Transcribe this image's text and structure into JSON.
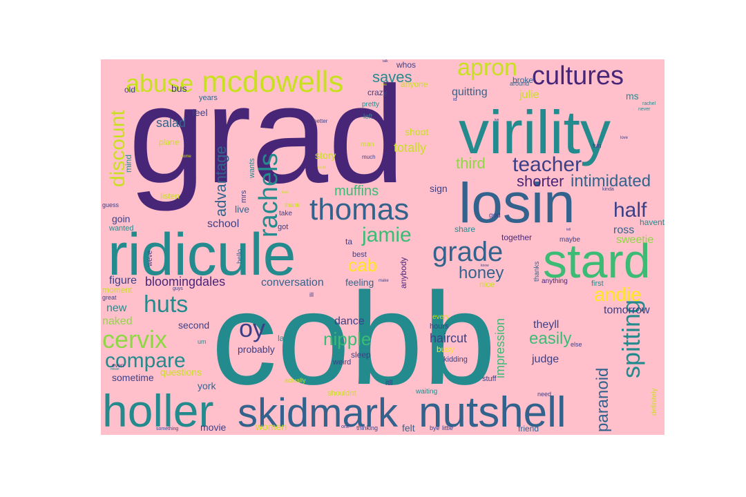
{
  "palette": {
    "purple": "#482677",
    "indigo": "#3b3f86",
    "blue": "#33638d",
    "teal": "#238a8d",
    "teal2": "#2a9d8f",
    "green": "#3cbb75",
    "lime": "#8fd744",
    "yellow": "#c9e020",
    "gold": "#fde725",
    "background": "#ffc0cb"
  },
  "words": [
    {
      "text": "grad",
      "c": "purple"
    },
    {
      "text": "cobb",
      "c": "teal"
    },
    {
      "text": "virility",
      "c": "teal"
    },
    {
      "text": "losin",
      "c": "blue"
    },
    {
      "text": "ridicule",
      "c": "teal"
    },
    {
      "text": "stard",
      "c": "green"
    },
    {
      "text": "nutshell",
      "c": "blue"
    },
    {
      "text": "skidmark",
      "c": "blue"
    },
    {
      "text": "holler",
      "c": "teal"
    },
    {
      "text": "mcdowells",
      "c": "yellow"
    },
    {
      "text": "abuse",
      "c": "yellow"
    },
    {
      "text": "cultures",
      "c": "purple"
    },
    {
      "text": "apron",
      "c": "yellow"
    },
    {
      "text": "thomas",
      "c": "blue"
    },
    {
      "text": "rachels",
      "c": "teal"
    },
    {
      "text": "compare",
      "c": "teal"
    },
    {
      "text": "cervix",
      "c": "lime"
    },
    {
      "text": "huts",
      "c": "teal"
    },
    {
      "text": "grade",
      "c": "blue"
    },
    {
      "text": "jamie",
      "c": "green"
    },
    {
      "text": "oy",
      "c": "indigo"
    },
    {
      "text": "spitting",
      "c": "teal"
    },
    {
      "text": "half",
      "c": "indigo"
    },
    {
      "text": "teacher",
      "c": "indigo"
    },
    {
      "text": "intimidated",
      "c": "blue"
    },
    {
      "text": "discount",
      "c": "yellow"
    },
    {
      "text": "advantage",
      "c": "blue"
    },
    {
      "text": "shorter",
      "c": "purple"
    },
    {
      "text": "muffins",
      "c": "green"
    },
    {
      "text": "saves",
      "c": "teal"
    },
    {
      "text": "honey",
      "c": "blue"
    },
    {
      "text": "cab",
      "c": "gold"
    },
    {
      "text": "andie",
      "c": "gold"
    },
    {
      "text": "nipple",
      "c": "green"
    },
    {
      "text": "easily",
      "c": "green"
    },
    {
      "text": "paranoid",
      "c": "blue"
    },
    {
      "text": "bloomingdales",
      "c": "purple"
    },
    {
      "text": "conversation",
      "c": "blue"
    },
    {
      "text": "third",
      "c": "lime"
    },
    {
      "text": "totally",
      "c": "yellow"
    },
    {
      "text": "quitting",
      "c": "blue"
    },
    {
      "text": "haircut",
      "c": "indigo"
    },
    {
      "text": "impression",
      "c": "green"
    },
    {
      "text": "salad",
      "c": "blue"
    },
    {
      "text": "school",
      "c": "indigo"
    },
    {
      "text": "naked",
      "c": "lime"
    },
    {
      "text": "new",
      "c": "teal"
    },
    {
      "text": "figure",
      "c": "indigo"
    },
    {
      "text": "dance",
      "c": "indigo"
    },
    {
      "text": "probably",
      "c": "indigo"
    },
    {
      "text": "judge",
      "c": "indigo"
    },
    {
      "text": "theyll",
      "c": "indigo"
    },
    {
      "text": "tomorrow",
      "c": "indigo"
    },
    {
      "text": "sweetie",
      "c": "lime"
    },
    {
      "text": "ross",
      "c": "blue"
    },
    {
      "text": "julie",
      "c": "yellow"
    },
    {
      "text": "story",
      "c": "yellow"
    },
    {
      "text": "shoot",
      "c": "yellow"
    },
    {
      "text": "sign",
      "c": "indigo"
    },
    {
      "text": "feeling",
      "c": "blue"
    },
    {
      "text": "second",
      "c": "indigo"
    },
    {
      "text": "questions",
      "c": "yellow"
    },
    {
      "text": "sometime",
      "c": "indigo"
    },
    {
      "text": "york",
      "c": "blue"
    },
    {
      "text": "movie",
      "c": "indigo"
    },
    {
      "text": "women",
      "c": "yellow"
    },
    {
      "text": "felt",
      "c": "blue"
    },
    {
      "text": "friend",
      "c": "blue"
    },
    {
      "text": "whos",
      "c": "indigo"
    },
    {
      "text": "anyone",
      "c": "yellow"
    },
    {
      "text": "crazy",
      "c": "indigo"
    },
    {
      "text": "bus",
      "c": "indigo"
    },
    {
      "text": "old",
      "c": "indigo"
    },
    {
      "text": "feel",
      "c": "indigo"
    },
    {
      "text": "years",
      "c": "blue"
    },
    {
      "text": "plane",
      "c": "yellow"
    },
    {
      "text": "mind",
      "c": "teal"
    },
    {
      "text": "listen",
      "c": "yellow"
    },
    {
      "text": "goin",
      "c": "indigo"
    },
    {
      "text": "wanted",
      "c": "teal"
    },
    {
      "text": "live",
      "c": "blue"
    },
    {
      "text": "mrs",
      "c": "indigo"
    },
    {
      "text": "wants",
      "c": "teal"
    },
    {
      "text": "got",
      "c": "indigo"
    },
    {
      "text": "ta",
      "c": "indigo"
    },
    {
      "text": "take",
      "c": "indigo"
    },
    {
      "text": "thank",
      "c": "yellow"
    },
    {
      "text": "hello",
      "c": "blue"
    },
    {
      "text": "best",
      "c": "indigo"
    },
    {
      "text": "anybody",
      "c": "purple"
    },
    {
      "text": "together",
      "c": "purple"
    },
    {
      "text": "share",
      "c": "teal"
    },
    {
      "text": "god",
      "c": "indigo"
    },
    {
      "text": "maybe",
      "c": "indigo"
    },
    {
      "text": "havent",
      "c": "teal"
    },
    {
      "text": "thanks",
      "c": "blue"
    },
    {
      "text": "anything",
      "c": "purple"
    },
    {
      "text": "first",
      "c": "teal"
    },
    {
      "text": "ms",
      "c": "teal"
    },
    {
      "text": "broke",
      "c": "blue"
    },
    {
      "text": "around",
      "c": "blue"
    },
    {
      "text": "pretty",
      "c": "teal"
    },
    {
      "text": "left",
      "c": "teal"
    },
    {
      "text": "better",
      "c": "indigo"
    },
    {
      "text": "much",
      "c": "indigo"
    },
    {
      "text": "man",
      "c": "yellow"
    },
    {
      "text": "fun",
      "c": "indigo"
    },
    {
      "text": "kinda",
      "c": "indigo"
    },
    {
      "text": "moment",
      "c": "yellow"
    },
    {
      "text": "great",
      "c": "indigo"
    },
    {
      "text": "even",
      "c": "indigo"
    },
    {
      "text": "weve",
      "c": "indigo"
    },
    {
      "text": "guess",
      "c": "indigo"
    },
    {
      "text": "ill",
      "c": "indigo"
    },
    {
      "text": "later",
      "c": "teal"
    },
    {
      "text": "sleep",
      "c": "indigo"
    },
    {
      "text": "weird",
      "c": "indigo"
    },
    {
      "text": "busy",
      "c": "gold"
    },
    {
      "text": "kidding",
      "c": "indigo"
    },
    {
      "text": "hours",
      "c": "indigo"
    },
    {
      "text": "every",
      "c": "yellow"
    },
    {
      "text": "itll",
      "c": "indigo"
    },
    {
      "text": "waiting",
      "c": "teal"
    },
    {
      "text": "stuff",
      "c": "indigo"
    },
    {
      "text": "need",
      "c": "indigo"
    },
    {
      "text": "actually",
      "c": "yellow"
    },
    {
      "text": "shouldnt",
      "c": "yellow"
    },
    {
      "text": "thinking",
      "c": "indigo"
    },
    {
      "text": "one",
      "c": "indigo"
    },
    {
      "text": "bye",
      "c": "indigo"
    },
    {
      "text": "little",
      "c": "indigo"
    },
    {
      "text": "something",
      "c": "indigo"
    },
    {
      "text": "um",
      "c": "teal"
    },
    {
      "text": "definitely",
      "c": "yellow"
    },
    {
      "text": "else",
      "c": "indigo"
    },
    {
      "text": "nice",
      "c": "yellow"
    },
    {
      "text": "id",
      "c": "indigo"
    },
    {
      "text": "ive",
      "c": "indigo"
    },
    {
      "text": "rachel",
      "c": "teal"
    },
    {
      "text": "never",
      "c": "teal"
    },
    {
      "text": "love",
      "c": "indigo"
    },
    {
      "text": "guys",
      "c": "indigo"
    },
    {
      "text": "make",
      "c": "indigo"
    },
    {
      "text": "talk",
      "c": "indigo"
    },
    {
      "text": "yes",
      "c": "yellow"
    },
    {
      "text": "could",
      "c": "yellow"
    },
    {
      "text": "time",
      "c": "yellow"
    },
    {
      "text": "come",
      "c": "yellow"
    },
    {
      "text": "mean",
      "c": "teal"
    },
    {
      "text": "tell",
      "c": "indigo"
    },
    {
      "text": "know",
      "c": "indigo"
    }
  ]
}
